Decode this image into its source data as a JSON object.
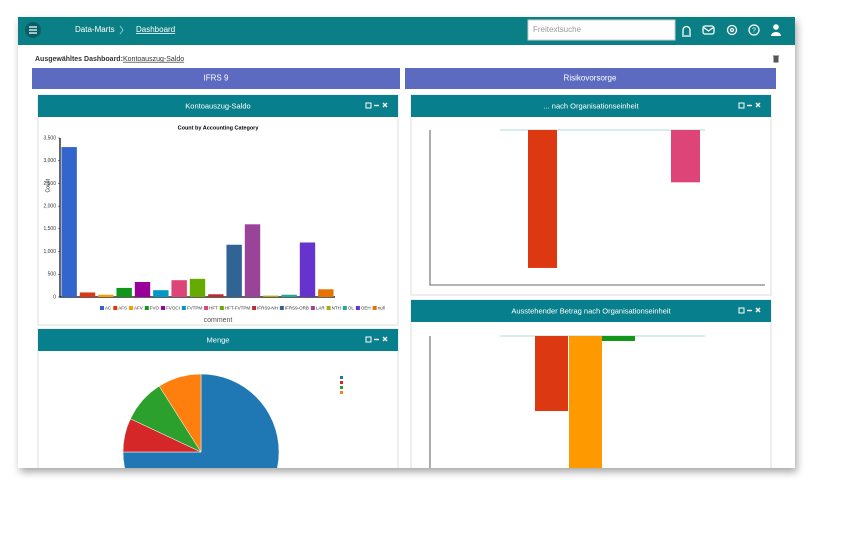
{
  "header": {
    "app": "Data-Marts",
    "page": "Dashboard",
    "search_placeholder": "Freitextsuche"
  },
  "dashboard": {
    "label": "Ausgewähltes Dashboard:",
    "name": "Kontoauszug-Saldo"
  },
  "tabs": [
    "IFRS 9",
    "Risikovorsorge"
  ],
  "panels": [
    {
      "title": "Kontoauszug-Saldo"
    },
    {
      "title": "Menge"
    },
    {
      "title": "... nach Organisationseinheit"
    },
    {
      "title": "Ausstehender Betrag nach Organisationseinheit"
    }
  ],
  "chart_data": [
    {
      "type": "bar",
      "title": "Count by Accounting Category",
      "y_label": "Count",
      "x_label": "comment",
      "categories": [
        "AC",
        "AFS",
        "AFV",
        "FVO",
        "FVOCI",
        "FVTPM",
        "HFT",
        "HFT-FVTPM",
        "IFRS9-NH",
        "IFRS9-ORB",
        "LAR",
        "NTH",
        "OL",
        "OEH",
        "null"
      ],
      "colors": [
        "#3366cc",
        "#dc3912",
        "#ff9900",
        "#109618",
        "#990099",
        "#0099c6",
        "#dd4477",
        "#66aa00",
        "#b82e2e",
        "#316395",
        "#994499",
        "#aaaa11",
        "#22aa99",
        "#6633cc",
        "#e67300"
      ],
      "values": [
        3300,
        100,
        50,
        200,
        330,
        150,
        370,
        400,
        60,
        1150,
        1600,
        30,
        50,
        1200,
        170
      ],
      "ylim": [
        0,
        3500
      ],
      "yticks": [
        0,
        500,
        {
          "value": 1000,
          "label": "1,000"
        },
        {
          "value": 1500,
          "label": "1,500"
        },
        {
          "value": 2000,
          "label": "2,000"
        },
        {
          "value": 2500,
          "label": "2,500"
        },
        {
          "value": 3000,
          "label": "3,000"
        },
        {
          "value": 3500,
          "label": "3,500"
        }
      ]
    },
    {
      "type": "pie",
      "values": [
        75,
        7,
        9,
        9
      ],
      "colors": [
        "#1f77b4",
        "#d62728",
        "#2ca02c",
        "#ff7f0e"
      ]
    },
    {
      "type": "bar",
      "values": [
        -712,
        -270
      ],
      "colors": [
        "#dc3912",
        "#dd4477"
      ],
      "ylim": [
        -800,
        0
      ]
    },
    {
      "type": "bar",
      "values": [
        -392,
        -700,
        -26
      ],
      "colors": [
        "#dc3912",
        "#ff9900",
        "#109618"
      ],
      "ylim": [
        -700,
        0
      ]
    }
  ]
}
